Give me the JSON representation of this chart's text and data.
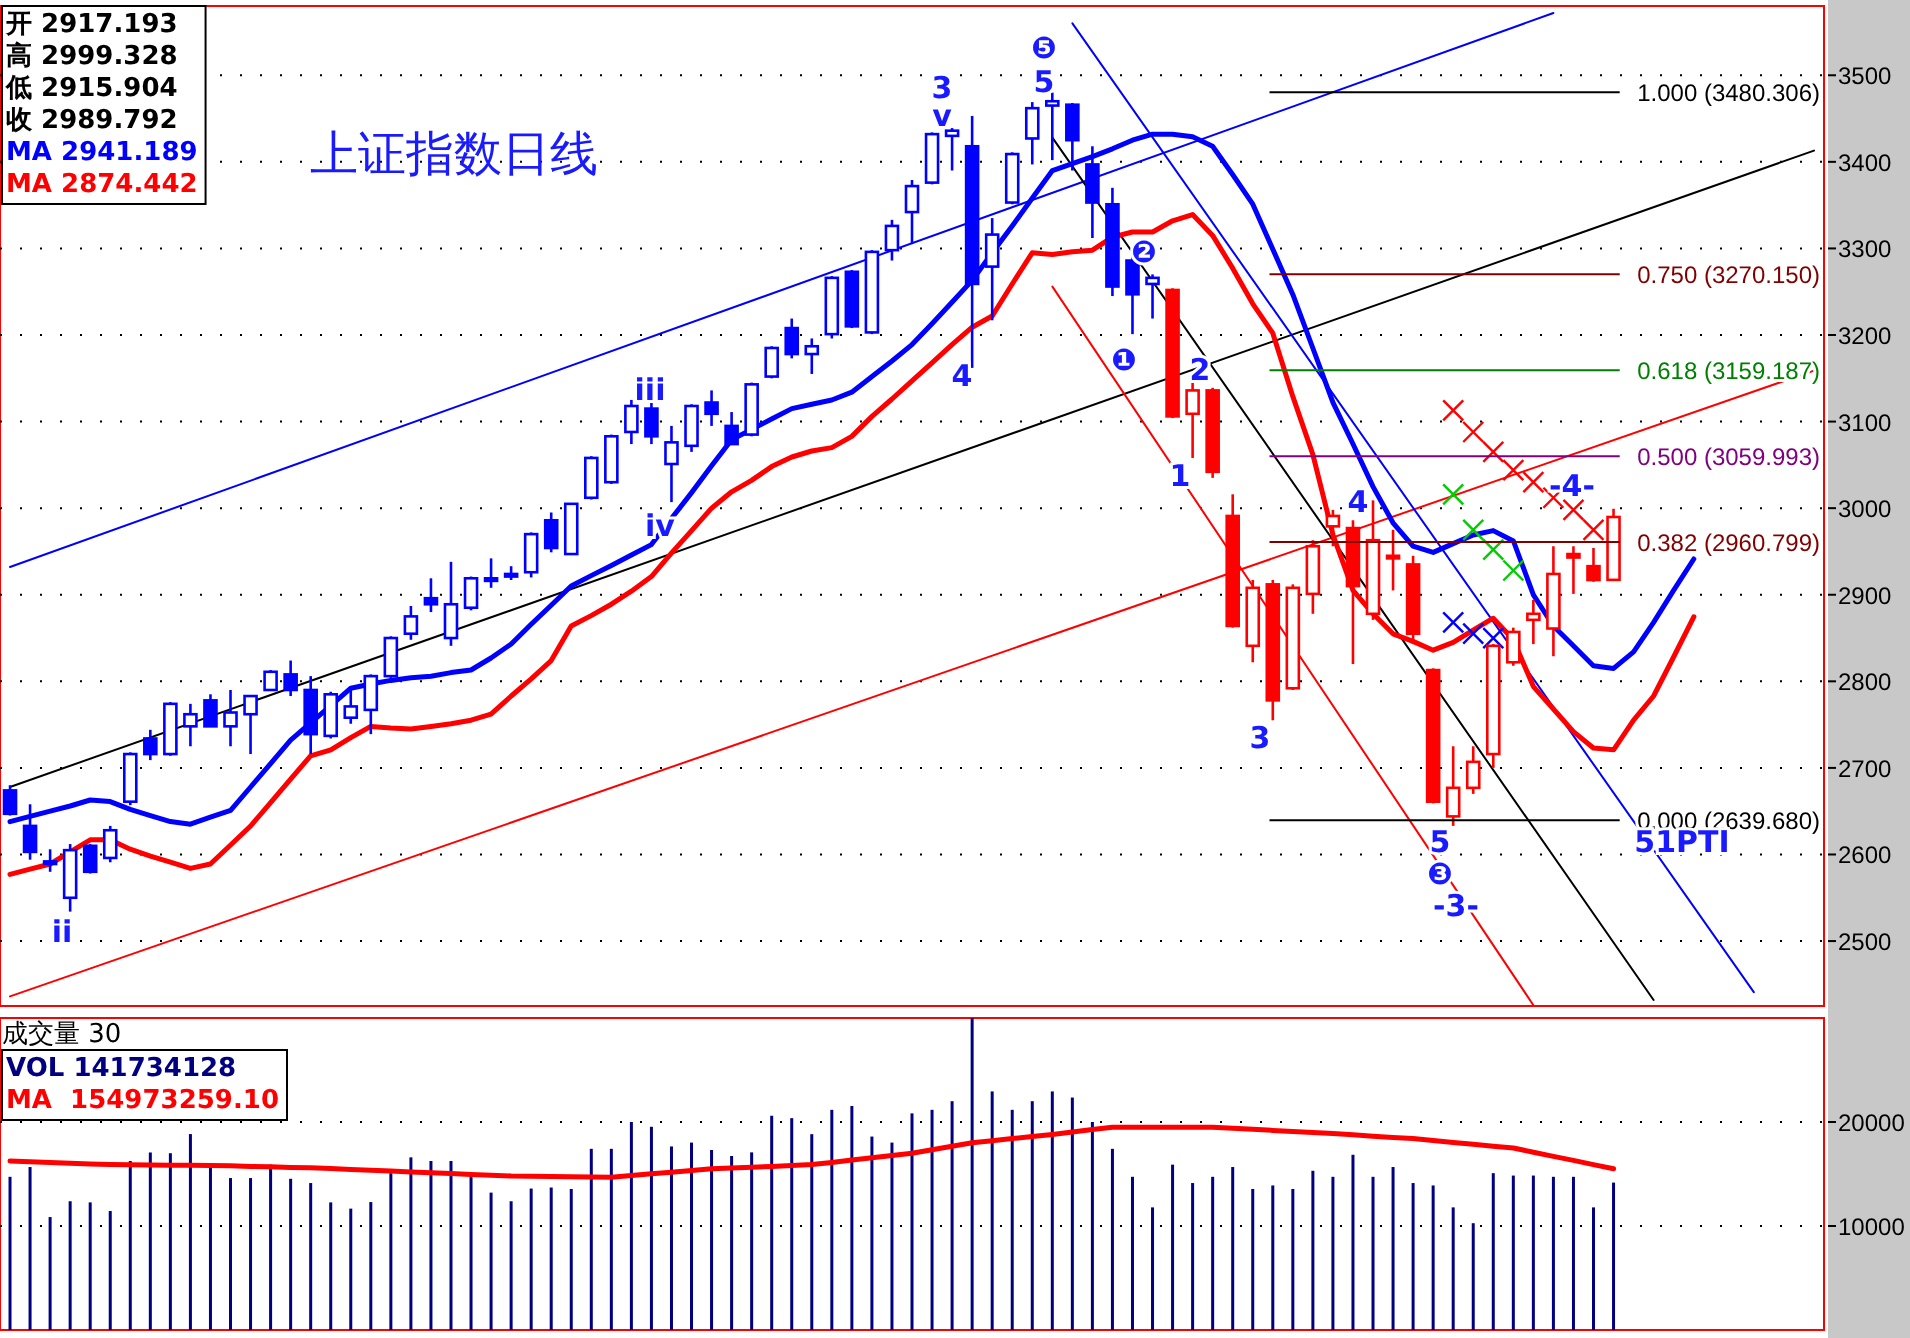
{
  "chart_data": [
    {
      "type": "candlestick",
      "title": "上证指数日线",
      "grid": "y",
      "tick_labels": "y",
      "ylim": [
        2425,
        3580
      ],
      "yticks": [
        2500,
        2600,
        2700,
        2800,
        2900,
        3000,
        3100,
        3200,
        3300,
        3400,
        3500
      ],
      "categories": [
        null,
        null,
        null,
        null,
        null,
        null,
        null,
        null,
        null,
        null,
        null,
        null,
        null,
        null,
        null,
        null,
        null,
        null,
        null,
        null,
        null,
        null,
        null,
        null,
        null,
        null,
        null,
        null,
        null,
        null,
        null,
        null,
        null,
        null,
        null,
        null,
        null,
        null,
        null,
        null,
        null,
        null,
        null,
        null,
        null,
        null,
        null,
        null,
        null,
        null,
        null,
        null,
        null,
        null,
        null,
        null,
        null,
        null,
        null,
        null,
        null,
        null,
        null,
        null,
        null,
        null,
        null,
        null,
        null,
        null,
        null,
        null,
        null,
        null,
        null,
        null,
        null,
        null,
        null,
        null,
        null,
        null,
        null,
        null,
        null,
        null,
        null,
        null,
        null,
        null,
        null
      ],
      "ohlc": [
        [
          2674,
          2680,
          2645,
          2647
        ],
        [
          2633,
          2658,
          2594,
          2603
        ],
        [
          2590,
          2606,
          2580,
          2592
        ],
        [
          2550,
          2612,
          2534,
          2605
        ],
        [
          2610,
          2612,
          2578,
          2580
        ],
        [
          2596,
          2633,
          2591,
          2628
        ],
        [
          2661,
          2718,
          2657,
          2716
        ],
        [
          2734,
          2744,
          2709,
          2716
        ],
        [
          2716,
          2776,
          2714,
          2774
        ],
        [
          2748,
          2774,
          2725,
          2762
        ],
        [
          2778,
          2785,
          2748,
          2748
        ],
        [
          2748,
          2790,
          2725,
          2764
        ],
        [
          2762,
          2783,
          2716,
          2783
        ],
        [
          2790,
          2813,
          2790,
          2811
        ],
        [
          2808,
          2824,
          2783,
          2790
        ],
        [
          2790,
          2806,
          2716,
          2739
        ],
        [
          2737,
          2788,
          2734,
          2785
        ],
        [
          2758,
          2790,
          2751,
          2771
        ],
        [
          2767,
          2808,
          2739,
          2806
        ],
        [
          2806,
          2852,
          2804,
          2850
        ],
        [
          2855,
          2887,
          2848,
          2875
        ],
        [
          2896,
          2919,
          2880,
          2889
        ],
        [
          2850,
          2938,
          2841,
          2889
        ],
        [
          2885,
          2921,
          2882,
          2919
        ],
        [
          2917,
          2942,
          2908,
          2919
        ],
        [
          2924,
          2933,
          2917,
          2922
        ],
        [
          2926,
          2972,
          2920,
          2970
        ],
        [
          2986,
          2995,
          2949,
          2954
        ],
        [
          2947,
          3005,
          2947,
          3005
        ],
        [
          3012,
          3060,
          3010,
          3058
        ],
        [
          3030,
          3085,
          3028,
          3083
        ],
        [
          3088,
          3125,
          3074,
          3118
        ],
        [
          3115,
          3127,
          3074,
          3083
        ],
        [
          3051,
          3095,
          3007,
          3076
        ],
        [
          3072,
          3120,
          3065,
          3118
        ],
        [
          3122,
          3136,
          3095,
          3109
        ],
        [
          3095,
          3111,
          3074,
          3074
        ],
        [
          3085,
          3145,
          3083,
          3143
        ],
        [
          3152,
          3187,
          3150,
          3185
        ],
        [
          3208,
          3219,
          3173,
          3178
        ],
        [
          3178,
          3196,
          3155,
          3187
        ],
        [
          3201,
          3268,
          3196,
          3266
        ],
        [
          3273,
          3275,
          3208,
          3210
        ],
        [
          3203,
          3298,
          3201,
          3296
        ],
        [
          3298,
          3333,
          3286,
          3326
        ],
        [
          3342,
          3379,
          3305,
          3372
        ],
        [
          3376,
          3434,
          3374,
          3432
        ],
        [
          3430,
          3439,
          3390,
          3436
        ],
        [
          3418,
          3453,
          3162,
          3259
        ],
        [
          3279,
          3335,
          3217,
          3316
        ],
        [
          3353,
          3411,
          3351,
          3409
        ],
        [
          3427,
          3469,
          3397,
          3462
        ],
        [
          3465,
          3480,
          3402,
          3470
        ],
        [
          3466,
          3468,
          3390,
          3425
        ],
        [
          3397,
          3418,
          3312,
          3353
        ],
        [
          3351,
          3370,
          3245,
          3256
        ],
        [
          3286,
          3296,
          3201,
          3247
        ],
        [
          3259,
          3270,
          3219,
          3266
        ],
        [
          3252,
          3254,
          3104,
          3106
        ],
        [
          3109,
          3150,
          3058,
          3136
        ],
        [
          3136,
          3139,
          3035,
          3042
        ],
        [
          2991,
          3016,
          2862,
          2864
        ],
        [
          2841,
          2917,
          2822,
          2908
        ],
        [
          2912,
          2917,
          2755,
          2778
        ],
        [
          2792,
          2912,
          2790,
          2908
        ],
        [
          2901,
          2963,
          2878,
          2956
        ],
        [
          2979,
          2998,
          2956,
          2991
        ],
        [
          2977,
          2986,
          2820,
          2910
        ],
        [
          2878,
          3009,
          2871,
          2963
        ],
        [
          2945,
          2975,
          2905,
          2942
        ],
        [
          2935,
          2945,
          2843,
          2855
        ],
        [
          2813,
          2815,
          2659,
          2661
        ],
        [
          2644,
          2725,
          2633,
          2677
        ],
        [
          2677,
          2725,
          2670,
          2707
        ],
        [
          2716,
          2843,
          2700,
          2841
        ],
        [
          2822,
          2862,
          2818,
          2857
        ],
        [
          2871,
          2894,
          2843,
          2878
        ],
        [
          2861,
          2956,
          2829,
          2924
        ],
        [
          2947,
          2956,
          2901,
          2943
        ],
        [
          2933,
          2954,
          2915,
          2917
        ],
        [
          2917.193,
          2999.328,
          2915.904,
          2989.792
        ],
        null,
        null,
        null,
        null,
        null,
        null,
        null,
        null,
        null,
        null
      ],
      "colors": [
        "#0000ff",
        "#0000ff",
        "#0000ff",
        "#0000ff",
        "#0000ff",
        "#0000ff",
        "#0000ff",
        "#0000ff",
        "#0000ff",
        "#0000ff",
        "#0000ff",
        "#0000ff",
        "#0000ff",
        "#0000ff",
        "#0000ff",
        "#0000ff",
        "#0000ff",
        "#0000ff",
        "#0000ff",
        "#0000ff",
        "#0000ff",
        "#0000ff",
        "#0000ff",
        "#0000ff",
        "#0000ff",
        "#0000ff",
        "#0000ff",
        "#0000ff",
        "#0000ff",
        "#0000ff",
        "#0000ff",
        "#0000ff",
        "#0000ff",
        "#0000ff",
        "#0000ff",
        "#0000ff",
        "#0000ff",
        "#0000ff",
        "#0000ff",
        "#0000ff",
        "#0000ff",
        "#0000ff",
        "#0000ff",
        "#0000ff",
        "#0000ff",
        "#0000ff",
        "#0000ff",
        "#0000ff",
        "#0000ff",
        "#0000ff",
        "#0000ff",
        "#0000ff",
        "#0000ff",
        "#0000ff",
        "#0000ff",
        "#0000ff",
        "#0000ff",
        "#0000ff",
        "#ff0000",
        "#ff0000",
        "#ff0000",
        "#ff0000",
        "#ff0000",
        "#ff0000",
        "#ff0000",
        "#ff0000",
        "#ff0000",
        "#ff0000",
        "#ff0000",
        "#ff0000",
        "#ff0000",
        "#ff0000",
        "#ff0000",
        "#ff0000",
        "#ff0000",
        "#ff0000",
        "#ff0000",
        "#ff0000",
        "#ff0000",
        "#ff0000",
        "#ff0000",
        null,
        null,
        null,
        null,
        null,
        null,
        null,
        null,
        null,
        null
      ],
      "series": [
        {
          "type": "line",
          "color": "#0000ff",
          "values": [
            2932,
            null,
            null,
            null,
            null,
            null,
            null,
            null,
            null,
            null,
            null,
            null,
            null,
            null,
            null,
            null,
            null,
            null,
            null,
            null,
            null,
            null,
            null,
            null,
            null,
            null,
            null,
            null,
            null,
            null,
            null,
            null,
            null,
            null,
            null,
            null,
            null,
            null,
            null,
            null,
            null,
            null,
            null,
            null,
            null,
            null,
            null,
            null,
            null,
            null,
            null,
            null,
            null,
            null,
            null,
            null,
            null,
            null,
            null,
            null,
            null,
            null,
            null,
            null,
            null,
            null,
            null,
            null,
            null,
            null,
            null,
            null,
            null,
            null,
            null,
            null,
            null,
            3572,
            null,
            null,
            null,
            null,
            null,
            null,
            null,
            null,
            null,
            null,
            null,
            null,
            null
          ]
        },
        {
          "type": "line",
          "color": "#000000",
          "values": [
            2678,
            null,
            null,
            null,
            null,
            null,
            null,
            null,
            null,
            null,
            null,
            null,
            null,
            null,
            null,
            null,
            null,
            null,
            null,
            null,
            null,
            null,
            null,
            null,
            null,
            null,
            null,
            null,
            null,
            null,
            null,
            null,
            null,
            null,
            null,
            null,
            null,
            null,
            null,
            null,
            null,
            null,
            null,
            null,
            null,
            null,
            null,
            null,
            null,
            null,
            null,
            null,
            null,
            null,
            null,
            null,
            null,
            null,
            null,
            null,
            null,
            null,
            null,
            null,
            null,
            null,
            null,
            null,
            null,
            null,
            null,
            null,
            null,
            null,
            null,
            null,
            null,
            null,
            null,
            null,
            null,
            null,
            null,
            null,
            null,
            null,
            null,
            null,
            null,
            null,
            3413
          ]
        },
        {
          "type": "line",
          "color": "#ff0000",
          "values": [
            2436,
            null,
            null,
            null,
            null,
            null,
            null,
            null,
            null,
            null,
            null,
            null,
            null,
            null,
            null,
            null,
            null,
            null,
            null,
            null,
            null,
            null,
            null,
            null,
            null,
            null,
            null,
            null,
            null,
            null,
            null,
            null,
            null,
            null,
            null,
            null,
            null,
            null,
            null,
            null,
            null,
            null,
            null,
            null,
            null,
            null,
            null,
            null,
            null,
            null,
            null,
            null,
            null,
            null,
            null,
            null,
            null,
            null,
            null,
            null,
            null,
            null,
            null,
            null,
            null,
            null,
            null,
            null,
            null,
            null,
            null,
            null,
            null,
            null,
            null,
            null,
            null,
            null,
            null,
            null,
            null,
            null,
            null,
            null,
            null,
            null,
            null,
            null,
            null,
            null,
            3159
          ]
        },
        {
          "type": "line",
          "color": "#000000",
          "values": [
            null,
            null,
            null,
            null,
            null,
            null,
            null,
            null,
            null,
            null,
            null,
            null,
            null,
            null,
            null,
            null,
            null,
            null,
            null,
            null,
            null,
            null,
            null,
            null,
            null,
            null,
            null,
            null,
            null,
            null,
            null,
            null,
            null,
            null,
            null,
            null,
            null,
            null,
            null,
            null,
            null,
            null,
            null,
            null,
            null,
            null,
            null,
            null,
            null,
            null,
            null,
            null,
            3428,
            null,
            null,
            null,
            null,
            null,
            null,
            null,
            null,
            null,
            null,
            null,
            null,
            null,
            null,
            null,
            null,
            null,
            null,
            null,
            null,
            null,
            null,
            null,
            null,
            null,
            null,
            null,
            null,
            null,
            2432,
            null,
            null,
            null,
            null,
            null,
            null,
            null,
            null
          ]
        },
        {
          "type": "line",
          "color": "#0000ff",
          "values": [
            null,
            null,
            null,
            null,
            null,
            null,
            null,
            null,
            null,
            null,
            null,
            null,
            null,
            null,
            null,
            null,
            null,
            null,
            null,
            null,
            null,
            null,
            null,
            null,
            null,
            null,
            null,
            null,
            null,
            null,
            null,
            null,
            null,
            null,
            null,
            null,
            null,
            null,
            null,
            null,
            null,
            null,
            null,
            null,
            null,
            null,
            null,
            null,
            null,
            null,
            null,
            null,
            null,
            3560,
            null,
            null,
            null,
            null,
            null,
            null,
            null,
            null,
            null,
            null,
            null,
            null,
            null,
            null,
            null,
            null,
            null,
            null,
            null,
            null,
            null,
            null,
            null,
            null,
            null,
            null,
            null,
            null,
            null,
            null,
            null,
            null,
            null,
            2441,
            null,
            null,
            null
          ]
        },
        {
          "type": "line",
          "color": "#ff0000",
          "values": [
            null,
            null,
            null,
            null,
            null,
            null,
            null,
            null,
            null,
            null,
            null,
            null,
            null,
            null,
            null,
            null,
            null,
            null,
            null,
            null,
            null,
            null,
            null,
            null,
            null,
            null,
            null,
            null,
            null,
            null,
            null,
            null,
            null,
            null,
            null,
            null,
            null,
            null,
            null,
            null,
            null,
            null,
            null,
            null,
            null,
            null,
            null,
            null,
            null,
            null,
            null,
            null,
            3256,
            null,
            null,
            null,
            null,
            null,
            null,
            null,
            null,
            null,
            null,
            null,
            null,
            null,
            null,
            null,
            null,
            null,
            null,
            null,
            null,
            null,
            null,
            null,
            2426,
            null,
            null,
            null,
            null,
            null,
            null,
            null,
            null,
            null,
            null,
            null,
            null,
            null,
            null
          ]
        },
        {
          "type": "line",
          "name": "MA 2941.189",
          "color": "#0000ff",
          "values": [
            2638,
            2644,
            2650,
            2656,
            2663,
            2661,
            2652,
            2645,
            2638,
            2635,
            2643,
            2651,
            2678,
            2705,
            2732,
            2752,
            2772,
            2792,
            2797,
            2801,
            2804,
            2806,
            2810,
            2813,
            2827,
            2843,
            2866,
            2888,
            2910,
            2922,
            2934,
            2946,
            2958,
            2988,
            3018,
            3049,
            3079,
            3091,
            3103,
            3115,
            3120,
            3125,
            3134,
            3152,
            3170,
            3189,
            3213,
            3238,
            3263,
            3295,
            3326,
            3358,
            3390,
            3398,
            3406,
            3415,
            3425,
            3432,
            3432,
            3429,
            3418,
            3385,
            3351,
            3299,
            3247,
            3185,
            3122,
            3074,
            3025,
            2983,
            2956,
            2949,
            2959,
            2969,
            2974,
            2962,
            2900,
            2864,
            2841,
            2818,
            2815,
            2834,
            2868,
            2905,
            2941.189,
            null,
            null,
            null,
            null,
            null,
            null
          ]
        },
        {
          "type": "line",
          "name": "MA 2874.442",
          "color": "#ff0000",
          "values": [
            2577,
            2583,
            2589,
            2603,
            2617,
            2617,
            2606,
            2598,
            2591,
            2584,
            2589,
            2611,
            2633,
            2660,
            2687,
            2714,
            2721,
            2735,
            2748,
            2746,
            2745,
            2748,
            2751,
            2755,
            2762,
            2783,
            2803,
            2824,
            2864,
            2876,
            2889,
            2904,
            2921,
            2948,
            2974,
            3000,
            3019,
            3032,
            3048,
            3059,
            3066,
            3070,
            3083,
            3106,
            3126,
            3147,
            3168,
            3189,
            3209,
            3222,
            3259,
            3295,
            3293,
            3296,
            3298,
            3313,
            3319,
            3319,
            3332,
            3339,
            3315,
            3277,
            3236,
            3202,
            3129,
            3062,
            2969,
            2905,
            2878,
            2855,
            2846,
            2836,
            2845,
            2859,
            2873,
            2848,
            2794,
            2768,
            2742,
            2723,
            2721,
            2755,
            2783,
            2828,
            2874.442,
            null,
            null,
            null,
            null,
            null,
            null
          ]
        },
        {
          "type": "scatter",
          "marker": "cross",
          "color": "#ff0000",
          "values": [
            null,
            null,
            null,
            null,
            null,
            null,
            null,
            null,
            null,
            null,
            null,
            null,
            null,
            null,
            null,
            null,
            null,
            null,
            null,
            null,
            null,
            null,
            null,
            null,
            null,
            null,
            null,
            null,
            null,
            null,
            null,
            null,
            null,
            null,
            null,
            null,
            null,
            null,
            null,
            null,
            null,
            null,
            null,
            null,
            null,
            null,
            null,
            null,
            null,
            null,
            null,
            null,
            null,
            null,
            null,
            null,
            null,
            null,
            null,
            null,
            null,
            null,
            null,
            null,
            null,
            null,
            null,
            null,
            null,
            null,
            null,
            null,
            3113,
            3088,
            3065,
            3044,
            3030,
            3012,
            2998,
            2975,
            null,
            null,
            null,
            null,
            null,
            null,
            null,
            null,
            null,
            null,
            null
          ]
        },
        {
          "type": "scatter",
          "marker": "cross",
          "color": "#00cc00",
          "values": [
            null,
            null,
            null,
            null,
            null,
            null,
            null,
            null,
            null,
            null,
            null,
            null,
            null,
            null,
            null,
            null,
            null,
            null,
            null,
            null,
            null,
            null,
            null,
            null,
            null,
            null,
            null,
            null,
            null,
            null,
            null,
            null,
            null,
            null,
            null,
            null,
            null,
            null,
            null,
            null,
            null,
            null,
            null,
            null,
            null,
            null,
            null,
            null,
            null,
            null,
            null,
            null,
            null,
            null,
            null,
            null,
            null,
            null,
            null,
            null,
            null,
            null,
            null,
            null,
            null,
            null,
            null,
            null,
            null,
            null,
            null,
            null,
            3016,
            2975,
            2952,
            2928,
            null,
            null,
            null,
            null,
            null,
            null,
            null,
            null,
            null,
            null,
            null,
            null,
            null,
            null,
            null
          ]
        },
        {
          "type": "scatter",
          "marker": "cross",
          "color": "#0000ff",
          "values": [
            null,
            null,
            null,
            null,
            null,
            null,
            null,
            null,
            null,
            null,
            null,
            null,
            null,
            null,
            null,
            null,
            null,
            null,
            null,
            null,
            null,
            null,
            null,
            null,
            null,
            null,
            null,
            null,
            null,
            null,
            null,
            null,
            null,
            null,
            null,
            null,
            null,
            null,
            null,
            null,
            null,
            null,
            null,
            null,
            null,
            null,
            null,
            null,
            null,
            null,
            null,
            null,
            null,
            null,
            null,
            null,
            null,
            null,
            null,
            null,
            null,
            null,
            null,
            null,
            null,
            null,
            null,
            null,
            null,
            null,
            null,
            null,
            2868,
            2855,
            2850,
            null,
            null,
            null,
            null,
            null,
            null,
            null,
            null,
            null,
            null,
            null,
            null,
            null,
            null,
            null,
            null
          ]
        }
      ],
      "ref_lines": [
        {
          "axis": "y",
          "value": 3480.306,
          "label": "1.000 (3480.306)",
          "color": "#000000"
        },
        {
          "axis": "y",
          "value": 3270.15,
          "label": "0.750 (3270.150)",
          "color": "#800000"
        },
        {
          "axis": "y",
          "value": 3159.187,
          "label": "0.618 (3159.187)",
          "color": "#008000"
        },
        {
          "axis": "y",
          "value": 3059.993,
          "label": "0.500 (3059.993)",
          "color": "#800080"
        },
        {
          "axis": "y",
          "value": 2960.799,
          "label": "0.382 (2960.799)",
          "color": "#800000"
        },
        {
          "axis": "y",
          "value": 2639.68,
          "label": "0.000 (2639.680)",
          "color": "#000000"
        }
      ],
      "annotations": [
        "开 2917.193",
        "高 2999.328",
        "低 2915.904",
        "收 2989.792",
        "ii",
        "iii",
        "iv",
        "3",
        "v",
        "4",
        "❺",
        "5",
        "❷",
        "❶",
        "2",
        "1",
        "4",
        "3",
        "5",
        "❸",
        "-3-",
        "-4-",
        "51PTI"
      ]
    },
    {
      "type": "bar",
      "title": "成交量 30",
      "grid": "y",
      "tick_labels": "y",
      "ylim": [
        0,
        30000
      ],
      "yticks": [
        10000,
        20000
      ],
      "categories": [
        null,
        null,
        null,
        null,
        null,
        null,
        null,
        null,
        null,
        null,
        null,
        null,
        null,
        null,
        null,
        null,
        null,
        null,
        null,
        null,
        null,
        null,
        null,
        null,
        null,
        null,
        null,
        null,
        null,
        null,
        null,
        null,
        null,
        null,
        null,
        null,
        null,
        null,
        null,
        null,
        null,
        null,
        null,
        null,
        null,
        null,
        null,
        null,
        null,
        null,
        null,
        null,
        null,
        null,
        null,
        null,
        null,
        null,
        null,
        null,
        null,
        null,
        null,
        null,
        null,
        null,
        null,
        null,
        null,
        null,
        null,
        null,
        null,
        null,
        null,
        null,
        null,
        null,
        null,
        null,
        null,
        null,
        null,
        null,
        null,
        null,
        null,
        null,
        null,
        null,
        null
      ],
      "series": [
        {
          "name": "VOL 141734128",
          "color": "#000080",
          "values": [
            14730,
            15670,
            10860,
            12380,
            12270,
            11440,
            16250,
            17070,
            17000,
            18840,
            16020,
            14610,
            14610,
            15900,
            14540,
            14130,
            12270,
            11670,
            12300,
            15080,
            16600,
            16250,
            16250,
            15080,
            13210,
            12380,
            13600,
            13700,
            13560,
            17420,
            17420,
            20000,
            19540,
            17650,
            18020,
            17310,
            16730,
            17080,
            20600,
            20370,
            18830,
            21170,
            21540,
            18600,
            18020,
            20830,
            21170,
            22000,
            29980,
            22940,
            21170,
            22000,
            22940,
            22350,
            20000,
            17420,
            14730,
            11790,
            15900,
            14130,
            14730,
            15670,
            13560,
            13900,
            13560,
            15310,
            14730,
            16850,
            14730,
            15670,
            14130,
            13900,
            11790,
            10270,
            15080,
            14850,
            14850,
            14730,
            14730,
            11790,
            14173,
            null,
            null,
            null,
            null,
            null,
            null,
            null,
            null,
            null,
            null
          ]
        },
        {
          "type": "line",
          "name": "MA  154973259.10",
          "color": "#ff0000",
          "values": [
            16250,
            16180,
            16110,
            16040,
            15970,
            15900,
            15880,
            15870,
            15850,
            15840,
            15820,
            15780,
            15730,
            15690,
            15640,
            15600,
            15520,
            15440,
            15360,
            15280,
            15200,
            15120,
            15040,
            14960,
            14880,
            14800,
            14780,
            14760,
            14740,
            14720,
            14700,
            14860,
            15020,
            15180,
            15340,
            15500,
            15580,
            15660,
            15740,
            15820,
            15900,
            16120,
            16340,
            16560,
            16780,
            17000,
            17330,
            17670,
            18000,
            18200,
            18400,
            18600,
            18800,
            19030,
            19270,
            19500,
            19500,
            19500,
            19500,
            19500,
            19500,
            19400,
            19300,
            19200,
            19100,
            19000,
            18880,
            18760,
            18640,
            18520,
            18400,
            18220,
            18040,
            17860,
            17680,
            17500,
            17100,
            16700,
            16300,
            15900,
            15497,
            null,
            null,
            null,
            null,
            null,
            null,
            null,
            null,
            null,
            null
          ]
        }
      ]
    }
  ]
}
